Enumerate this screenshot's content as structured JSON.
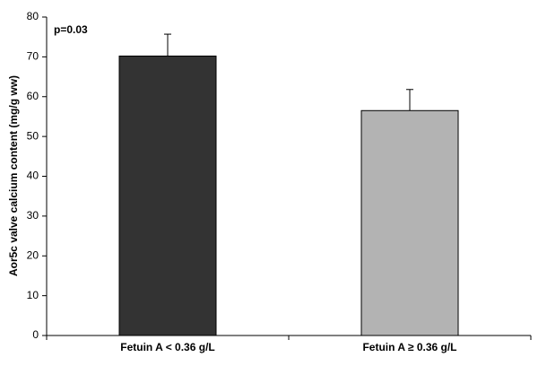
{
  "chart_data": {
    "type": "bar",
    "y_label": "Aor5c valve calcium content (mg/g ww)",
    "annotation": "p=0.03",
    "categories": [
      "Fetuin A < 0.36 g/L",
      "Fetuin A ≥ 0.36 g/L"
    ],
    "values": [
      70.2,
      56.5
    ],
    "errors": [
      5.5,
      5.3
    ],
    "colors": [
      "#333333",
      "#b3b3b3"
    ],
    "ylim": [
      0,
      80
    ],
    "yticks": [
      0,
      10,
      20,
      30,
      40,
      50,
      60,
      70,
      80
    ],
    "grid": false
  }
}
